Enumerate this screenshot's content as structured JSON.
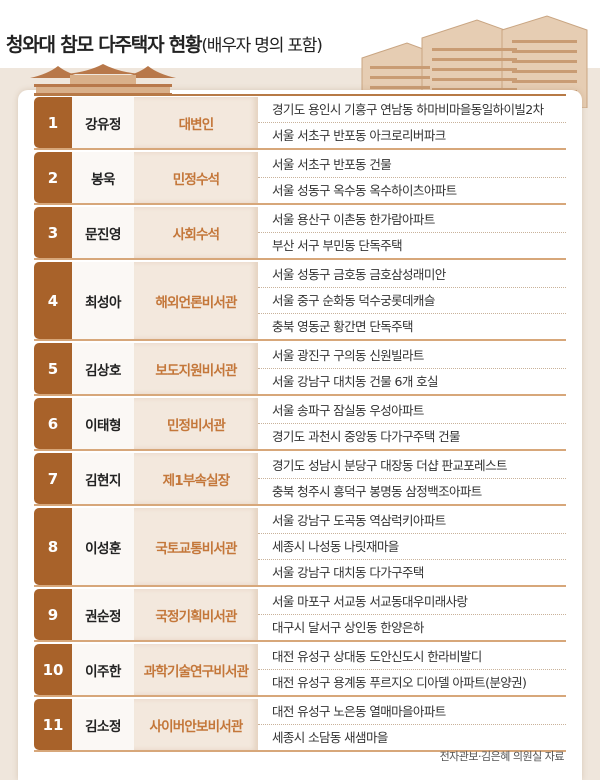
{
  "title": {
    "main": "청와대 참모 다주택자 현황",
    "sub": "(배우자 명의 포함)"
  },
  "rows": [
    {
      "no": "1",
      "name": "강유정",
      "position": "대변인",
      "properties": [
        "경기도 용인시 기흥구 연남동 하마비마을동일하이빌2차",
        "서울 서초구 반포동 아크로리버파크"
      ]
    },
    {
      "no": "2",
      "name": "봉욱",
      "position": "민정수석",
      "properties": [
        "서울 서초구 반포동 건물",
        "서울 성동구 옥수동 옥수하이츠아파트"
      ]
    },
    {
      "no": "3",
      "name": "문진영",
      "position": "사회수석",
      "properties": [
        "서울 용산구 이촌동 한가람아파트",
        "부산 서구 부민동 단독주택"
      ]
    },
    {
      "no": "4",
      "name": "최성아",
      "position": "해외언론비서관",
      "properties": [
        "서울 성동구 금호동 금호삼성래미안",
        "서울 중구 순화동 덕수궁롯데캐슬",
        "충북 영동군 황간면 단독주택"
      ]
    },
    {
      "no": "5",
      "name": "김상호",
      "position": "보도지원비서관",
      "properties": [
        "서울 광진구 구의동 신원빌라트",
        "서울 강남구 대치동 건물 6개 호실"
      ]
    },
    {
      "no": "6",
      "name": "이태형",
      "position": "민정비서관",
      "properties": [
        "서울 송파구 잠실동 우성아파트",
        "경기도 과천시 중앙동 다가구주택 건물"
      ]
    },
    {
      "no": "7",
      "name": "김현지",
      "position": "제1부속실장",
      "properties": [
        "경기도 성남시 분당구 대장동 더샵 판교포레스트",
        "충북 청주시 흥덕구 봉명동 삼정백조아파트"
      ]
    },
    {
      "no": "8",
      "name": "이성훈",
      "position": "국토교통비서관",
      "properties": [
        "서울 강남구 도곡동 역삼럭키아파트",
        "세종시 나성동 나릿재마을",
        "서울 강남구 대치동 다가구주택"
      ]
    },
    {
      "no": "9",
      "name": "권순정",
      "position": "국정기획비서관",
      "properties": [
        "서울 마포구 서교동 서교동대우미래사랑",
        "대구시 달서구 상인동 한양은하"
      ]
    },
    {
      "no": "10",
      "name": "이주한",
      "position": "과학기술연구비서관",
      "properties": [
        "대전 유성구 상대동 도안신도시 한라비발디",
        "대전 유성구 용계동 푸르지오 디아델 아파트(분양권)"
      ]
    },
    {
      "no": "11",
      "name": "김소정",
      "position": "사이버안보비서관",
      "properties": [
        "대전 유성구 노은동 열매마을아파트",
        "세종시 소담동 새샘마을"
      ]
    }
  ],
  "source": "전자관보·김은혜 의원실 자료",
  "colors": {
    "accent": "#a8622a",
    "position_text": "#c4773a",
    "panel": "#efe6dc"
  },
  "icons": [
    "palace-illustration",
    "apartment-buildings-illustration"
  ]
}
